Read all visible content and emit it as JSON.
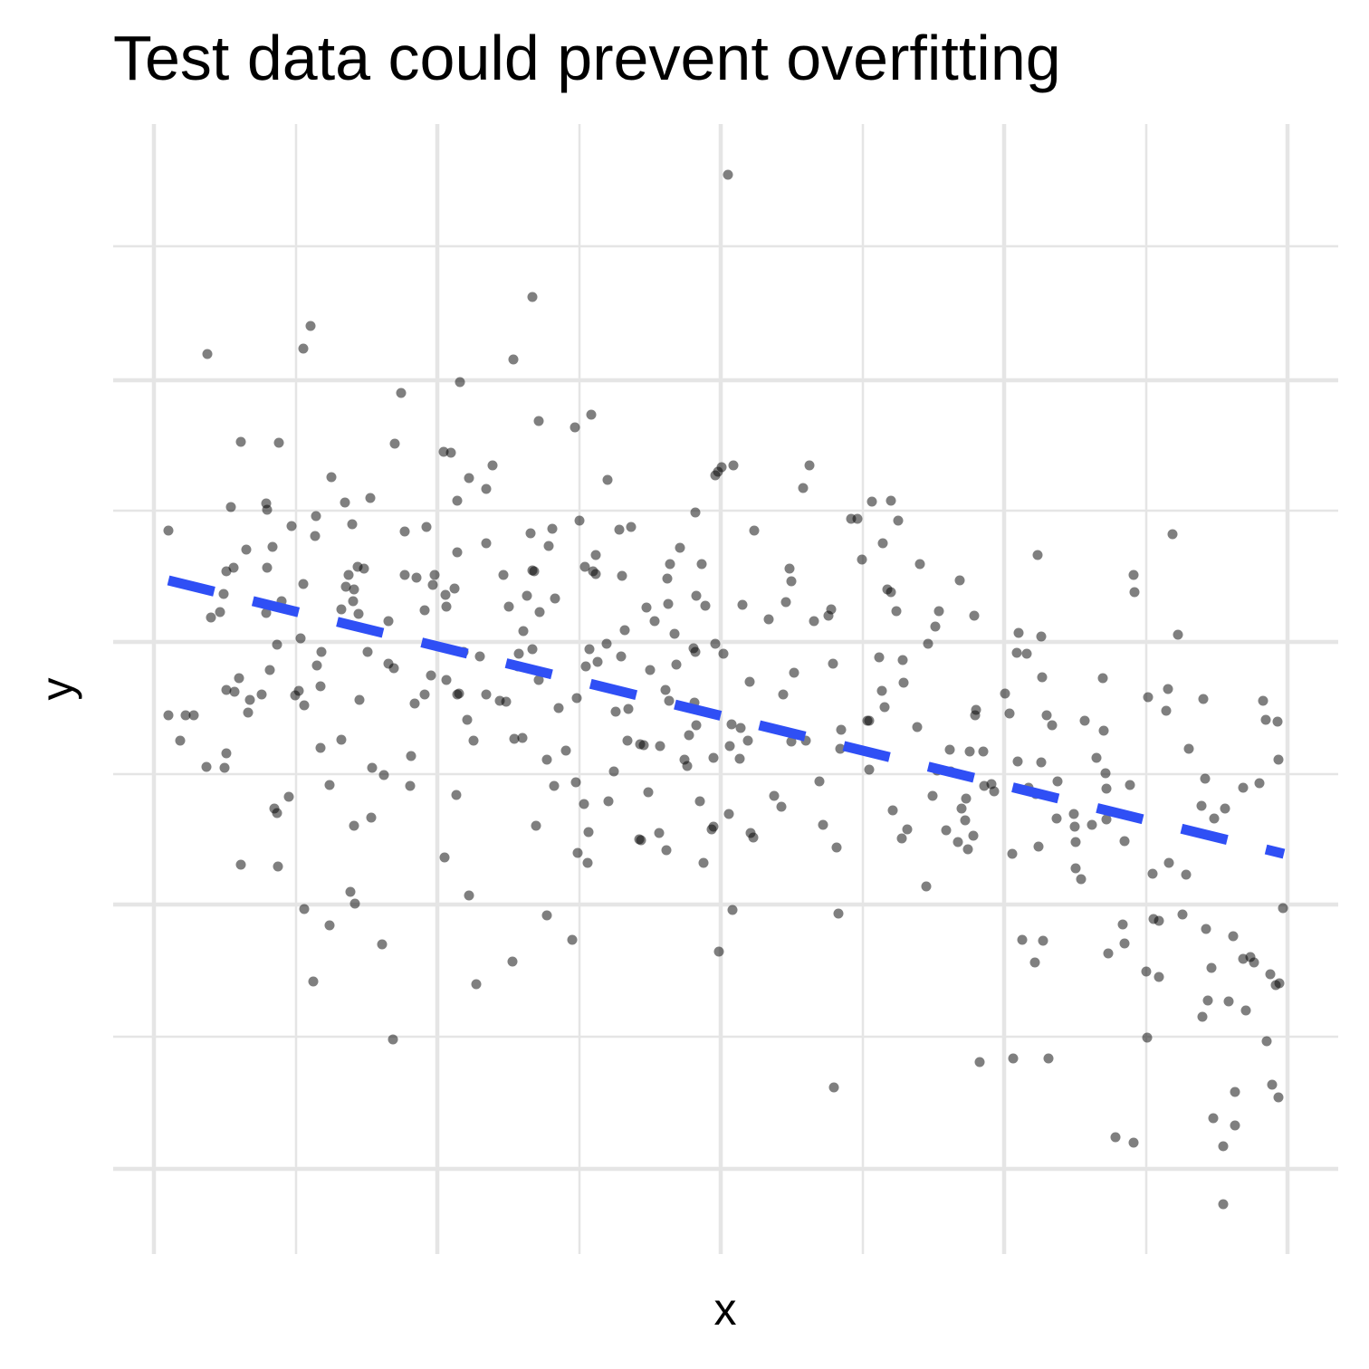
{
  "chart_data": {
    "type": "scatter",
    "title": "Test data could prevent overfitting",
    "x_label": "x",
    "y_label": "y",
    "xlim": [
      -45,
      1308
    ],
    "ylim": [
      -94,
      1154
    ],
    "xticks": [
      0,
      313,
      626,
      939,
      1252
    ],
    "xminor": [
      157,
      470,
      783,
      1096
    ],
    "yticks": [
      0,
      292,
      582,
      871
    ],
    "yminor": [
      146,
      436,
      727,
      1019
    ],
    "grid": true,
    "series": [
      {
        "color": "#000000",
        "opacity": 0.5,
        "x": [
          16,
          16,
          29,
          35,
          44,
          59,
          58,
          63,
          73,
          78,
          80,
          80,
          77,
          80,
          85,
          88,
          89,
          94,
          96,
          96,
          102,
          104,
          106,
          119,
          124,
          125,
          125,
          124,
          128,
          131,
          133,
          136,
          136,
          137,
          138,
          141,
          149,
          152,
          156,
          160,
          162,
          165,
          165,
          166,
          166,
          173,
          176,
          178,
          179,
          180,
          184,
          185,
          184,
          194,
          194,
          196,
          207,
          207,
          211,
          212,
          215,
          217,
          219,
          221,
          221,
          220,
          222,
          225,
          226,
          227,
          232,
          236,
          239,
          240,
          241,
          252,
          254,
          259,
          259,
          264,
          265,
          266,
          273,
          277,
          277,
          284,
          283,
          288,
          290,
          299,
          299,
          301,
          306,
          308,
          310,
          320,
          321,
          322,
          323,
          323,
          328,
          332,
          334,
          335,
          335,
          335,
          337,
          338,
          342,
          346,
          348,
          348,
          353,
          356,
          360,
          367,
          367,
          367,
          374,
          382,
          386,
          389,
          392,
          396,
          397,
          398,
          402,
          403,
          407,
          408,
          412,
          416,
          418,
          418,
          418,
          420,
          422,
          425,
          425,
          426,
          434,
          434,
          436,
          440,
          442,
          443,
          447,
          455,
          462,
          465,
          466,
          467,
          468,
          470,
          475,
          476,
          477,
          479,
          480,
          481,
          483,
          485,
          488,
          488,
          490,
          500,
          501,
          502,
          508,
          510,
          514,
          516,
          517,
          520,
          523,
          524,
          527,
          536,
          537,
          538,
          541,
          544,
          546,
          548,
          553,
          558,
          559,
          565,
          566,
          567,
          568,
          569,
          570,
          575,
          577,
          581,
          586,
          589,
          591,
          596,
          597,
          598,
          598,
          599,
          599,
          603,
          605,
          607,
          609,
          616,
          618,
          618,
          620,
          620,
          623,
          624,
          627,
          629,
          634,
          635,
          636,
          638,
          639,
          640,
          647,
          648,
          650,
          656,
          658,
          659,
          662,
          663,
          679,
          685,
          693,
          695,
          698,
          702,
          704,
          704,
          707,
          717,
          720,
          724,
          729,
          735,
          739,
          745,
          748,
          750,
          751,
          754,
          756,
          758,
          759,
          770,
          777,
          782,
          788,
          790,
          790,
          793,
          801,
          804,
          805,
          807,
          810,
          814,
          814,
          816,
          820,
          822,
          826,
          827,
          828,
          832,
          843,
          846,
          853,
          855,
          860,
          863,
          865,
          867,
          875,
          879,
          880,
          888,
          890,
          892,
          896,
          897,
          899,
          901,
          905,
          906,
          907,
          908,
          912,
          916,
          917,
          925,
          928,
          940,
          945,
          948,
          949,
          953,
          954,
          955,
          959,
          964,
          966,
          973,
          974,
          976,
          977,
          980,
          980,
          981,
          982,
          988,
          986,
          992,
          997,
          998,
          1016,
          1017,
          1018,
          1018,
          1024,
          1028,
          1036,
          1041,
          1048,
          1049,
          1051,
          1052,
          1052,
          1054,
          1062,
          1070,
          1072,
          1072,
          1078,
          1082,
          1082,
          1083,
          1097,
          1098,
          1096,
          1103,
          1104,
          1110,
          1110,
          1118,
          1120,
          1121,
          1125,
          1131,
          1136,
          1140,
          1143,
          1157,
          1158,
          1159,
          1161,
          1162,
          1164,
          1168,
          1170,
          1171,
          1181,
          1181,
          1183,
          1187,
          1192,
          1194,
          1194,
          1203,
          1203,
          1206,
          1211,
          1215,
          1221,
          1225,
          1228,
          1229,
          1233,
          1235,
          1239,
          1241,
          1242,
          1242,
          1243,
          1247
        ],
        "values": [
          705,
          501,
          473,
          501,
          501,
          900,
          444,
          609,
          615,
          443,
          459,
          660,
          635,
          529,
          731,
          664,
          527,
          542,
          803,
          336,
          684,
          504,
          518,
          524,
          735,
          728,
          664,
          614,
          551,
          687,
          398,
          393,
          579,
          334,
          802,
          627,
          411,
          710,
          523,
          528,
          586,
          906,
          646,
          512,
          287,
          931,
          207,
          699,
          721,
          556,
          533,
          571,
          465,
          269,
          424,
          764,
          474,
          618,
          736,
          643,
          656,
          306,
          712,
          379,
          640,
          627,
          293,
          665,
          613,
          518,
          663,
          571,
          741,
          388,
          443,
          248,
          435,
          605,
          558,
          143,
          553,
          801,
          857,
          704,
          656,
          456,
          423,
          514,
          653,
          617,
          524,
          709,
          545,
          645,
          656,
          792,
          344,
          634,
          540,
          621,
          791,
          641,
          413,
          738,
          681,
          524,
          525,
          869,
          571,
          496,
          302,
          763,
          473,
          204,
          566,
          524,
          751,
          691,
          777,
          517,
          656,
          516,
          621,
          229,
          894,
          475,
          555,
          569,
          476,
          594,
          633,
          702,
          963,
          661,
          574,
          660,
          379,
          540,
          826,
          615,
          452,
          280,
          688,
          707,
          423,
          630,
          509,
          462,
          253,
          819,
          427,
          520,
          349,
          716,
          403,
          665,
          555,
          338,
          372,
          574,
          833,
          660,
          657,
          678,
          560,
          580,
          761,
          406,
          439,
          505,
          706,
          566,
          655,
          595,
          473,
          508,
          709,
          364,
          469,
          363,
          468,
          620,
          416,
          551,
          605,
          371,
          467,
          529,
          352,
          652,
          624,
          517,
          668,
          591,
          557,
          686,
          452,
          445,
          479,
          575,
          515,
          725,
          571,
          633,
          490,
          406,
          668,
          338,
          622,
          375,
          378,
          454,
          766,
          580,
          770,
          240,
          775,
          569,
          1098,
          392,
          467,
          491,
          286,
          777,
          453,
          487,
          623,
          473,
          538,
          371,
          366,
          705,
          607,
          412,
          400,
          524,
          626,
          663,
          649,
          472,
          548,
          752,
          473,
          777,
          605,
          428,
          380,
          611,
          618,
          558,
          90,
          355,
          282,
          464,
          485,
          718,
          718,
          673,
          495,
          495,
          441,
          737,
          565,
          528,
          691,
          510,
          640,
          738,
          637,
          396,
          616,
          716,
          365,
          562,
          537,
          375,
          488,
          668,
          312,
          580,
          412,
          599,
          440,
          616,
          374,
          463,
          439,
          361,
          650,
          398,
          385,
          409,
          353,
          461,
          368,
          611,
          501,
          507,
          118,
          461,
          423,
          425,
          417,
          525,
          503,
          348,
          122,
          570,
          450,
          592,
          253,
          569,
          421,
          228,
          414,
          678,
          356,
          588,
          449,
          543,
          252,
          122,
          501,
          490,
          387,
          428,
          392,
          378,
          361,
          332,
          320,
          495,
          380,
          454,
          542,
          484,
          437,
          420,
          386,
          238,
          35,
          270,
          249,
          362,
          424,
          29,
          656,
          637,
          145,
          521,
          218,
          326,
          276,
          212,
          274,
          506,
          530,
          338,
          701,
          590,
          281,
          325,
          464,
          401,
          168,
          519,
          431,
          265,
          186,
          222,
          56,
          387,
          25,
          -39,
          398,
          185,
          257,
          85,
          48,
          421,
          232,
          175,
          234,
          228,
          426,
          517,
          496,
          141,
          215,
          93,
          203,
          494,
          79,
          452,
          205,
          288
        ]
      }
    ],
    "trend_line": {
      "x": [
        16,
        1248
      ],
      "values": [
        650,
        348
      ],
      "color": "#2f4ff5",
      "dashed": true
    }
  }
}
